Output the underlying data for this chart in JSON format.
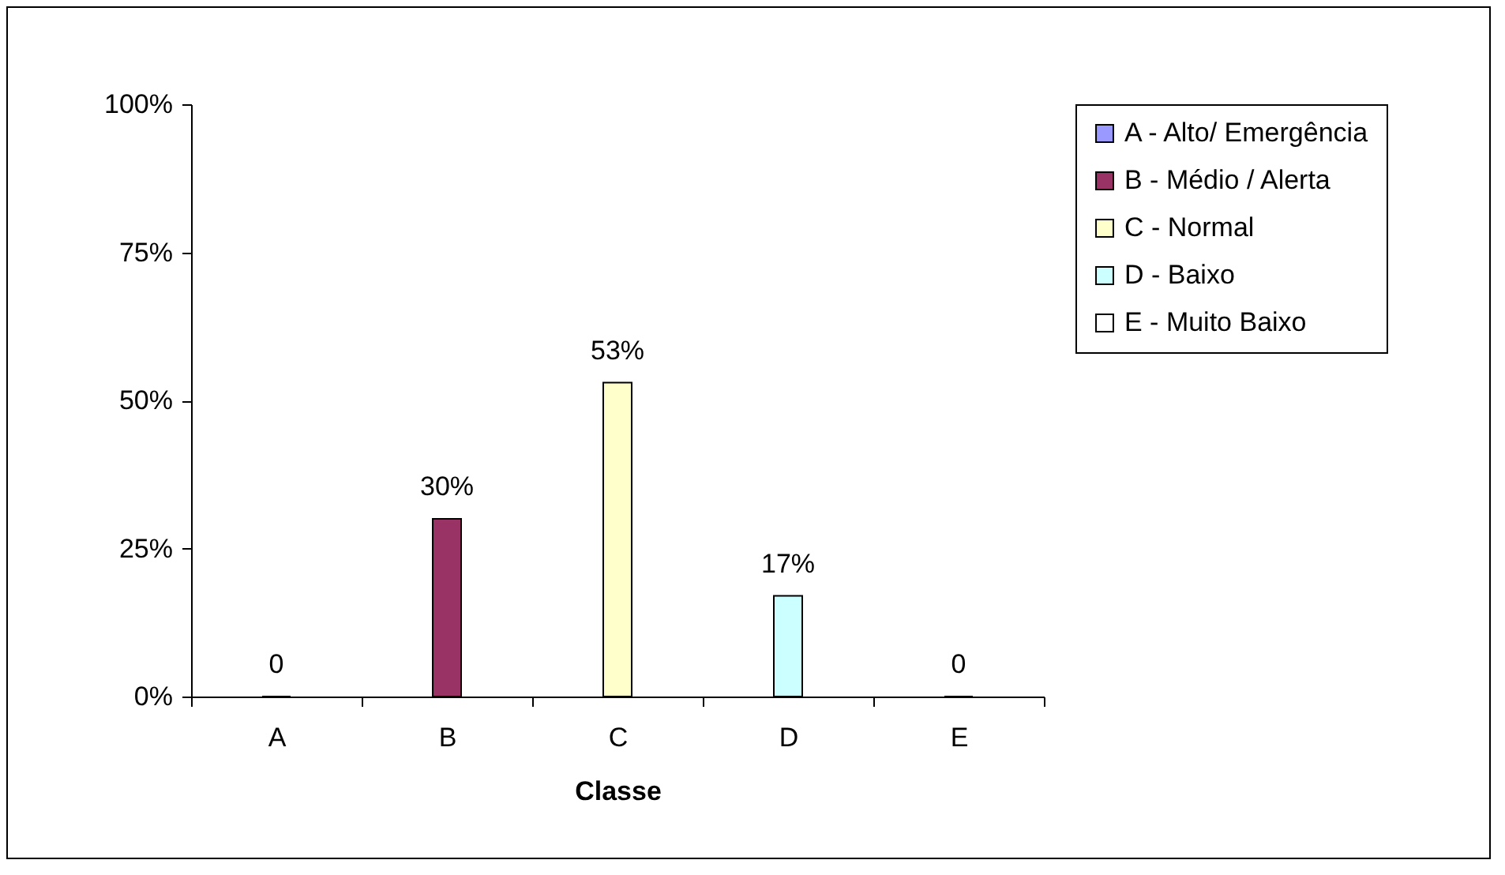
{
  "chart_data": {
    "type": "bar",
    "xlabel": "Classe",
    "categories": [
      "A",
      "B",
      "C",
      "D",
      "E"
    ],
    "ylim": [
      0,
      100
    ],
    "yticks": [
      {
        "value": 0,
        "label": "0%"
      },
      {
        "value": 25,
        "label": "25%"
      },
      {
        "value": 50,
        "label": "50%"
      },
      {
        "value": 75,
        "label": "75%"
      },
      {
        "value": 100,
        "label": "100%"
      }
    ],
    "grid": false,
    "legend": "right",
    "series": [
      {
        "name": "A - Alto/ Emergência",
        "color": "#9999ff",
        "values": [
          0,
          null,
          null,
          null,
          null
        ],
        "value_labels": [
          "0",
          null,
          null,
          null,
          null
        ]
      },
      {
        "name": "B - Médio / Alerta",
        "color": "#993366",
        "values": [
          null,
          30,
          null,
          null,
          null
        ],
        "value_labels": [
          null,
          "30%",
          null,
          null,
          null
        ]
      },
      {
        "name": "C - Normal",
        "color": "#ffffcc",
        "values": [
          null,
          null,
          53,
          null,
          null
        ],
        "value_labels": [
          null,
          null,
          "53%",
          null,
          null
        ]
      },
      {
        "name": "D - Baixo",
        "color": "#ccffff",
        "values": [
          null,
          null,
          null,
          17,
          null
        ],
        "value_labels": [
          null,
          null,
          null,
          "17%",
          null
        ]
      },
      {
        "name": "E - Muito Baixo",
        "color": "#ffffff",
        "values": [
          null,
          null,
          null,
          null,
          0
        ],
        "value_labels": [
          null,
          null,
          null,
          null,
          "0"
        ]
      }
    ]
  }
}
